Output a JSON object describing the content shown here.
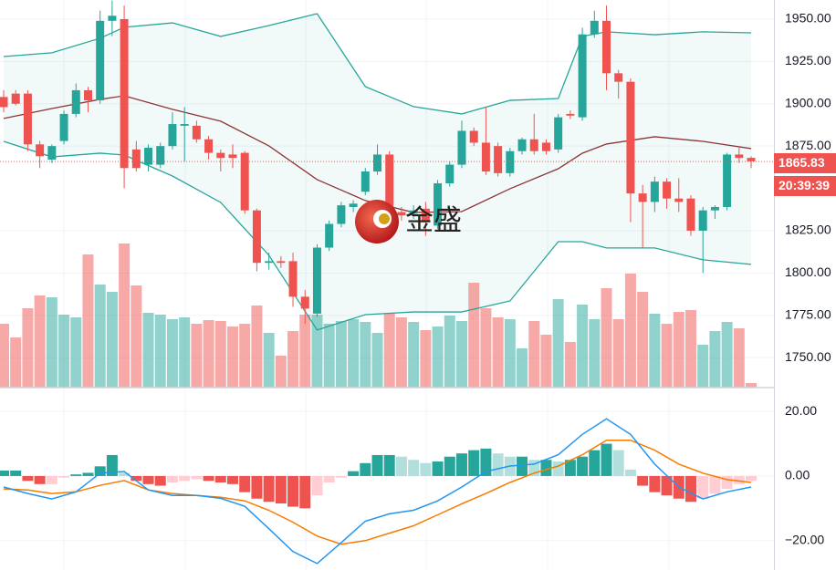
{
  "chart_data": [
    {
      "type": "candlestick",
      "open": [
        1904,
        1906,
        1906,
        1876,
        1867,
        1878,
        1894,
        1908,
        1902,
        1949,
        1950,
        1873,
        1864,
        1864,
        1875,
        1887,
        1887,
        1879,
        1871,
        1870,
        1871,
        1837,
        1806,
        1807,
        1807,
        1786,
        1776,
        1815,
        1829,
        1839,
        1848,
        1860,
        1870,
        1836,
        1835,
        1838,
        1828,
        1853,
        1864,
        1884,
        1877,
        1875,
        1859,
        1872,
        1879,
        1877,
        1873,
        1894,
        1892,
        1941,
        1949,
        1918,
        1913,
        1847,
        1842,
        1854,
        1844,
        1844,
        1825,
        1837,
        1839,
        1870,
        1868
      ],
      "high": [
        1908,
        1908,
        1908,
        1878,
        1876,
        1896,
        1912,
        1910,
        1955,
        1961,
        1958,
        1878,
        1876,
        1877,
        1895,
        1898,
        1890,
        1881,
        1873,
        1876,
        1872,
        1838,
        1812,
        1810,
        1812,
        1790,
        1817,
        1831,
        1842,
        1843,
        1862,
        1876,
        1872,
        1839,
        1840,
        1842,
        1855,
        1866,
        1890,
        1886,
        1898,
        1877,
        1874,
        1880,
        1894,
        1879,
        1894,
        1896,
        1945,
        1955,
        1958,
        1920,
        1915,
        1852,
        1857,
        1856,
        1856,
        1846,
        1839,
        1840,
        1871,
        1874,
        1869
      ],
      "low": [
        1895,
        1899,
        1872,
        1862,
        1865,
        1876,
        1892,
        1895,
        1900,
        1940,
        1850,
        1860,
        1860,
        1862,
        1873,
        1866,
        1877,
        1867,
        1860,
        1862,
        1835,
        1801,
        1802,
        1803,
        1780,
        1770,
        1774,
        1813,
        1827,
        1836,
        1846,
        1858,
        1834,
        1831,
        1832,
        1822,
        1826,
        1851,
        1862,
        1875,
        1858,
        1857,
        1857,
        1870,
        1870,
        1870,
        1871,
        1891,
        1890,
        1939,
        1908,
        1903,
        1830,
        1815,
        1836,
        1838,
        1836,
        1822,
        1800,
        1832,
        1837,
        1865,
        1862
      ],
      "close": [
        1898,
        1900,
        1876,
        1869,
        1875,
        1894,
        1908,
        1902,
        1949,
        1952,
        1862,
        1862,
        1874,
        1875,
        1888,
        1888,
        1879,
        1871,
        1868,
        1868,
        1837,
        1806,
        1807,
        1806,
        1786,
        1779,
        1815,
        1829,
        1840,
        1841,
        1860,
        1870,
        1836,
        1834,
        1837,
        1830,
        1853,
        1864,
        1884,
        1877,
        1860,
        1859,
        1872,
        1879,
        1872,
        1872,
        1892,
        1893,
        1941,
        1949,
        1918,
        1913,
        1847,
        1842,
        1854,
        1844,
        1842,
        1825,
        1837,
        1839,
        1870,
        1868,
        1866
      ],
      "up_color": "#26a69a",
      "down_color": "#ef5350",
      "volume": [
        70,
        55,
        87,
        101,
        99,
        80,
        77,
        146,
        113,
        105,
        158,
        112,
        82,
        80,
        75,
        77,
        70,
        74,
        73,
        67,
        70,
        90,
        60,
        35,
        62,
        80,
        80,
        70,
        73,
        75,
        72,
        60,
        81,
        77,
        72,
        63,
        67,
        79,
        73,
        115,
        87,
        77,
        75,
        43,
        73,
        58,
        97,
        50,
        91,
        75,
        109,
        75,
        125,
        105,
        81,
        70,
        83,
        85,
        47,
        62,
        72,
        65,
        5
      ],
      "volume_lim": [
        0,
        425
      ],
      "bands": {
        "x": [
          0,
          4,
          8,
          10,
          14,
          18,
          22,
          26,
          30,
          34,
          38,
          42,
          46,
          48,
          50,
          54,
          58,
          62
        ],
        "upper": [
          1927.9,
          1930.1,
          1938.7,
          1945.2,
          1947.8,
          1939.8,
          1946.2,
          1953.2,
          1910.1,
          1898.3,
          1894.0,
          1902.0,
          1903.1,
          1939.8,
          1942.5,
          1940.8,
          1942.5,
          1941.9
        ],
        "basis": [
          1891.3,
          1897.2,
          1902.6,
          1904.7,
          1896.7,
          1889.7,
          1875.1,
          1855.2,
          1842.8,
          1835.8,
          1836.3,
          1849.8,
          1861.6,
          1870.8,
          1876.2,
          1880.5,
          1877.8,
          1873.5
        ],
        "lower": [
          1877.8,
          1868.6,
          1870.8,
          1869.7,
          1857.3,
          1841.7,
          1810.5,
          1766.3,
          1775.4,
          1777.0,
          1777.0,
          1783.5,
          1818.5,
          1818.5,
          1814.8,
          1814.8,
          1807.8,
          1805.1
        ],
        "band_color": "#26a69a",
        "basis_color": "#8d3434"
      },
      "ylim": [
        1732.3,
        1961.3
      ],
      "yticks": [
        {
          "value": 1950,
          "label": "1950.00"
        },
        {
          "value": 1925,
          "label": "1925.00"
        },
        {
          "value": 1900,
          "label": "1900.00"
        },
        {
          "value": 1875,
          "label": "1875.00"
        },
        {
          "value": 1825,
          "label": "1825.00"
        },
        {
          "value": 1800,
          "label": "1800.00"
        },
        {
          "value": 1775,
          "label": "1775.00"
        },
        {
          "value": 1750,
          "label": "1750.00"
        }
      ],
      "last_price": {
        "value": 1865.83,
        "label": "1865.83"
      },
      "countdown": "20:39:39",
      "watermark": "金盛",
      "grid": true
    },
    {
      "type": "macd",
      "histogram": [
        1.7,
        1.7,
        -1.5,
        -2.5,
        -2.5,
        -0.5,
        0.5,
        1,
        3,
        6.5,
        1,
        -1.5,
        -2.5,
        -3,
        -2,
        -1.5,
        -1,
        -1.5,
        -2,
        -2.5,
        -5,
        -7,
        -8,
        -8.5,
        -9.5,
        -10,
        -6,
        -2,
        -0.5,
        1.5,
        4,
        6.5,
        6.5,
        6,
        5,
        4,
        4.5,
        6,
        7,
        8,
        8.5,
        7,
        6,
        6,
        5,
        5,
        4.5,
        5,
        6,
        8,
        10,
        8,
        2,
        -3,
        -5,
        -6,
        -7,
        -8,
        -7,
        -5.5,
        -4,
        -2.5,
        -1.5
      ],
      "hist_colors": {
        "pos_rising": "#26a69a",
        "pos_falling": "#b2dfdb",
        "neg_falling": "#ef5350",
        "neg_rising": "#ffcdd2"
      },
      "macd": {
        "x": [
          0,
          2,
          4,
          6,
          8,
          10,
          12,
          14,
          16,
          18,
          20,
          22,
          24,
          26,
          28,
          30,
          32,
          34,
          36,
          38,
          40,
          42,
          44,
          46,
          48,
          50,
          52,
          54,
          56,
          58,
          60,
          62
        ],
        "values": [
          -3.4,
          -5.4,
          -7.1,
          -4.9,
          0.9,
          1.4,
          -4.3,
          -6.0,
          -6.0,
          -6.9,
          -9.4,
          -16.3,
          -23.4,
          -27.1,
          -20.6,
          -14.0,
          -11.7,
          -10.6,
          -7.7,
          -3.4,
          1.4,
          3.1,
          3.7,
          6.6,
          12.9,
          17.7,
          12.9,
          3.7,
          -3.4,
          -7.1,
          -4.9,
          -3.4
        ],
        "color": "#2196f3"
      },
      "signal": {
        "x": [
          0,
          2,
          4,
          6,
          8,
          10,
          12,
          14,
          16,
          18,
          20,
          22,
          24,
          26,
          28,
          30,
          32,
          34,
          36,
          38,
          40,
          42,
          44,
          46,
          48,
          50,
          52,
          54,
          56,
          58,
          60,
          62
        ],
        "values": [
          -4.0,
          -4.3,
          -5.4,
          -4.9,
          -2.9,
          -1.4,
          -4.3,
          -5.4,
          -6.0,
          -6.6,
          -7.7,
          -10.6,
          -14.3,
          -18.6,
          -21.1,
          -20.0,
          -17.7,
          -15.4,
          -12.0,
          -8.6,
          -5.4,
          -2.0,
          0.9,
          3.1,
          6.6,
          11.1,
          11.1,
          8.0,
          3.7,
          0.9,
          -1.1,
          -2.0
        ],
        "color": "#f57c00"
      },
      "ylim": [
        -29.1,
        27.1
      ],
      "yticks": [
        {
          "value": 20,
          "label": "20.00"
        },
        {
          "value": 0,
          "label": "0.00"
        },
        {
          "value": -20,
          "label": "−20.00"
        }
      ]
    }
  ]
}
